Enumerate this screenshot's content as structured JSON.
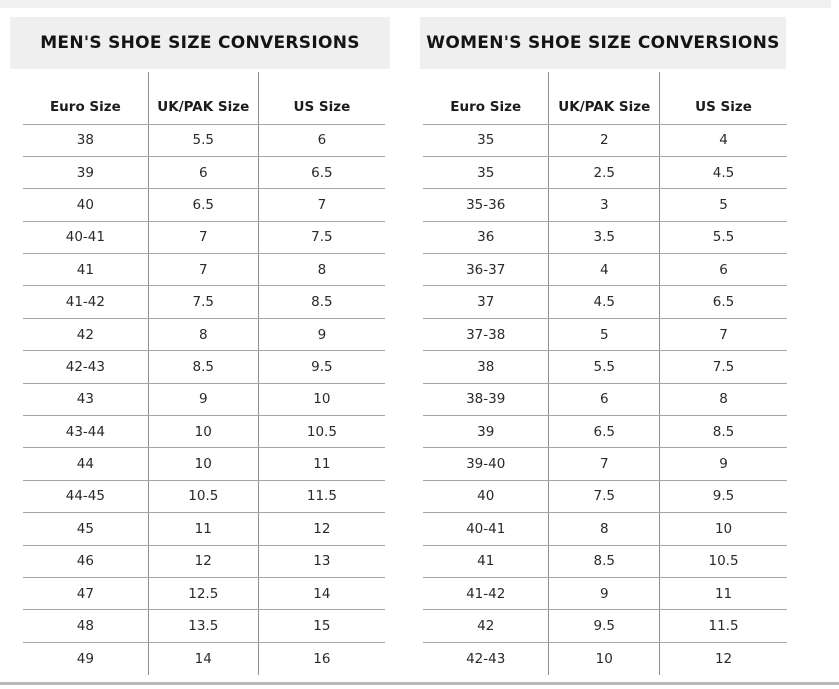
{
  "colors": {
    "banner_bg": "#efefef",
    "title_text": "#141414",
    "header_text": "#1c1c1c",
    "cell_text": "#2a2a2a",
    "h_line": "#a6a6a6",
    "v_line": "#8f8f8f",
    "top_strip": "#f0f0f0",
    "bottom_line": "#b4bbc1",
    "page_bg": "#ffffff"
  },
  "tables": [
    {
      "id": "mens",
      "title": "MEN'S SHOE SIZE CONVERSIONS",
      "columns": [
        "Euro Size",
        "UK/PAK Size",
        "US Size"
      ],
      "rows": [
        [
          "38",
          "5.5",
          "6"
        ],
        [
          "39",
          "6",
          "6.5"
        ],
        [
          "40",
          "6.5",
          "7"
        ],
        [
          "40-41",
          "7",
          "7.5"
        ],
        [
          "41",
          "7",
          "8"
        ],
        [
          "41-42",
          "7.5",
          "8.5"
        ],
        [
          "42",
          "8",
          "9"
        ],
        [
          "42-43",
          "8.5",
          "9.5"
        ],
        [
          "43",
          "9",
          "10"
        ],
        [
          "43-44",
          "10",
          "10.5"
        ],
        [
          "44",
          "10",
          "11"
        ],
        [
          "44-45",
          "10.5",
          "11.5"
        ],
        [
          "45",
          "11",
          "12"
        ],
        [
          "46",
          "12",
          "13"
        ],
        [
          "47",
          "12.5",
          "14"
        ],
        [
          "48",
          "13.5",
          "15"
        ],
        [
          "49",
          "14",
          "16"
        ]
      ]
    },
    {
      "id": "womens",
      "title": "WOMEN'S SHOE SIZE CONVERSIONS",
      "columns": [
        "Euro Size",
        "UK/PAK Size",
        "US Size"
      ],
      "rows": [
        [
          "35",
          "2",
          "4"
        ],
        [
          "35",
          "2.5",
          "4.5"
        ],
        [
          "35-36",
          "3",
          "5"
        ],
        [
          "36",
          "3.5",
          "5.5"
        ],
        [
          "36-37",
          "4",
          "6"
        ],
        [
          "37",
          "4.5",
          "6.5"
        ],
        [
          "37-38",
          "5",
          "7"
        ],
        [
          "38",
          "5.5",
          "7.5"
        ],
        [
          "38-39",
          "6",
          "8"
        ],
        [
          "39",
          "6.5",
          "8.5"
        ],
        [
          "39-40",
          "7",
          "9"
        ],
        [
          "40",
          "7.5",
          "9.5"
        ],
        [
          "40-41",
          "8",
          "10"
        ],
        [
          "41",
          "8.5",
          "10.5"
        ],
        [
          "41-42",
          "9",
          "11"
        ],
        [
          "42",
          "9.5",
          "11.5"
        ],
        [
          "42-43",
          "10",
          "12"
        ]
      ]
    }
  ]
}
